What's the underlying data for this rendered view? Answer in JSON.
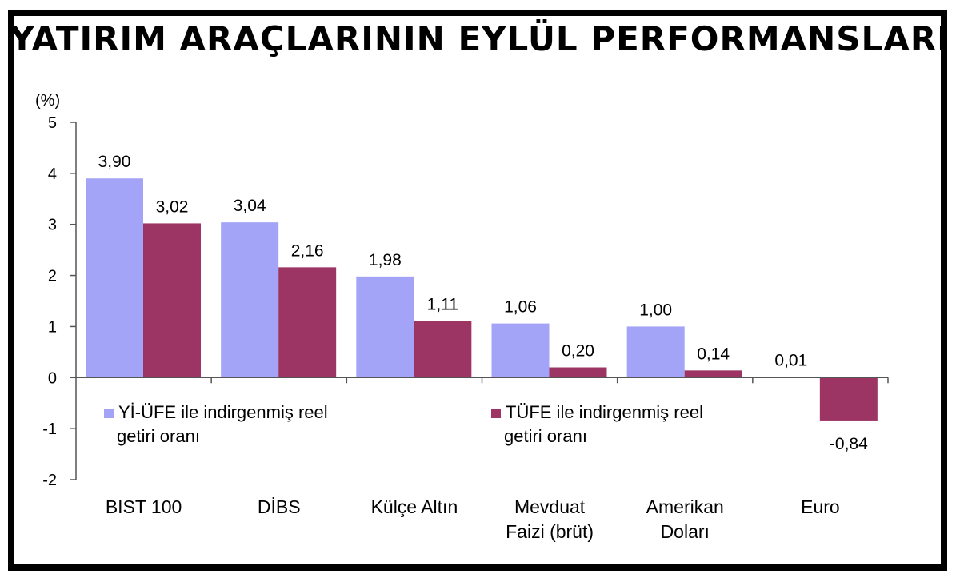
{
  "chart_data": {
    "type": "bar",
    "title": "YATIRIM ARAÇLARININ EYLÜL PERFORMANSLARI",
    "ylabel": "(%)",
    "xlabel": "",
    "ylim": [
      -2,
      5
    ],
    "yticks": [
      "5",
      "4",
      "3",
      "2",
      "1",
      "0",
      "-1",
      "-2"
    ],
    "categories": [
      [
        "BIST 100"
      ],
      [
        "DİBS"
      ],
      [
        "Külçe Altın"
      ],
      [
        "Mevduat",
        "Faizi (brüt)"
      ],
      [
        "Amerikan",
        "Doları"
      ],
      [
        "Euro"
      ]
    ],
    "series": [
      {
        "name": "Yİ-ÜFE ile indirgenmiş reel getiri oranı",
        "legend_lines": [
          "Yİ-ÜFE ile indirgenmiş reel",
          "getiri oranı"
        ],
        "color": "#a3a3f7",
        "values": [
          3.9,
          3.04,
          1.98,
          1.06,
          1.0,
          0.01
        ],
        "labels": [
          "3,90",
          "3,04",
          "1,98",
          "1,06",
          "1,00",
          "0,01"
        ]
      },
      {
        "name": "TÜFE ile indirgenmiş reel getiri oranı",
        "legend_lines": [
          "TÜFE ile indirgenmiş reel",
          "getiri oranı"
        ],
        "color": "#9c3464",
        "values": [
          3.02,
          2.16,
          1.11,
          0.2,
          0.14,
          -0.84
        ],
        "labels": [
          "3,02",
          "2,16",
          "1,11",
          "0,20",
          "0,14",
          "-0,84"
        ]
      }
    ],
    "grid": false,
    "legend_position": "inside-bottom-left"
  }
}
